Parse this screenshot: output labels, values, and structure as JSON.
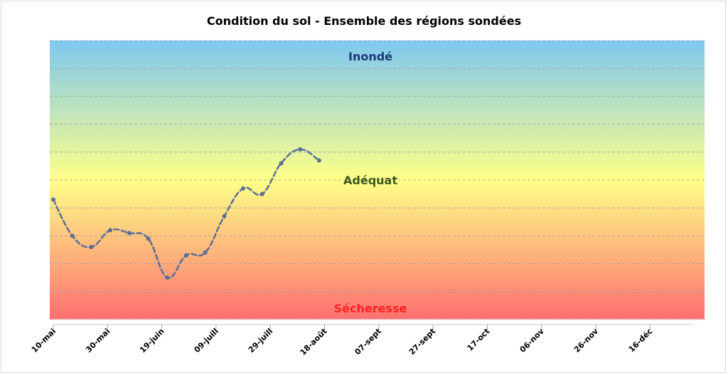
{
  "chart_data": {
    "type": "line",
    "title": "Condition du sol - Ensemble des régions sondées",
    "zones": [
      {
        "label": "Inondé",
        "color": "#1f3a7a"
      },
      {
        "label": "Adéquat",
        "color": "#3b5a1f"
      },
      {
        "label": "Sécheresse",
        "color": "#ff2222"
      }
    ],
    "gradient": [
      "#7ec8f0",
      "#ffff88",
      "#ff7070"
    ],
    "grid": true,
    "ylim": [
      0,
      10
    ],
    "x_ticks": [
      "10-mai",
      "30-mai",
      "19-juin",
      "09-juill",
      "29-juill",
      "18-août",
      "07-sept",
      "27-sept",
      "17-oct",
      "06-nov",
      "26-nov",
      "16-déc"
    ],
    "series": [
      {
        "color": "#5a6e98",
        "style": "dashed",
        "x": [
          "10-mai",
          "17-mai",
          "24-mai",
          "31-mai",
          "07-juin",
          "14-juin",
          "21-juin",
          "28-juin",
          "05-juill",
          "12-juill",
          "19-juill",
          "26-juill",
          "02-août",
          "09-août",
          "16-août"
        ],
        "values": [
          4.3,
          3.0,
          2.6,
          3.2,
          3.1,
          2.9,
          1.5,
          2.3,
          2.4,
          3.7,
          4.7,
          4.5,
          5.6,
          6.1,
          5.7
        ]
      }
    ]
  }
}
